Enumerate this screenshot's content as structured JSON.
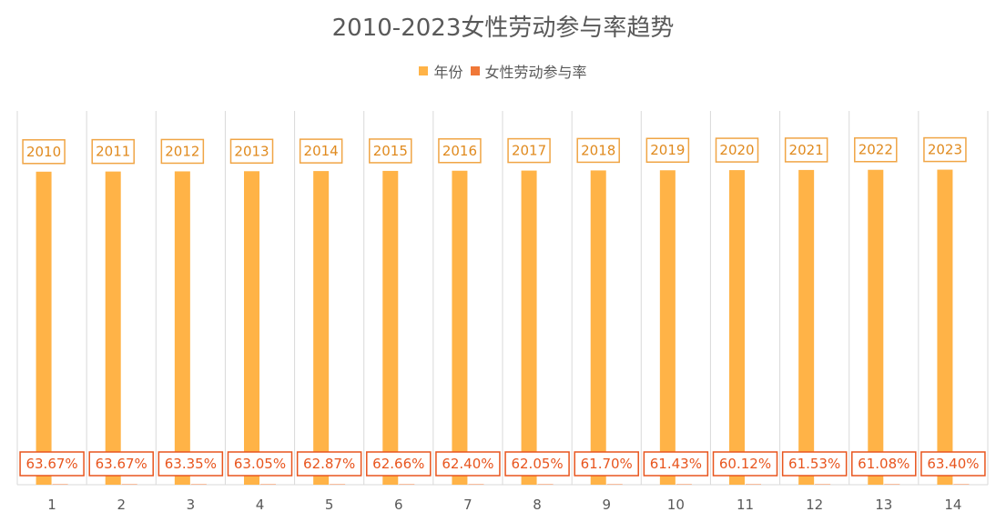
{
  "chart_data": {
    "type": "bar",
    "title": "2010-2023女性劳动参与率趋势",
    "categories": [
      "1",
      "2",
      "3",
      "4",
      "5",
      "6",
      "7",
      "8",
      "9",
      "10",
      "11",
      "12",
      "13",
      "14"
    ],
    "series": [
      {
        "name": "年份",
        "color": "#FFB347",
        "values": [
          2010,
          2011,
          2012,
          2013,
          2014,
          2015,
          2016,
          2017,
          2018,
          2019,
          2020,
          2021,
          2022,
          2023
        ],
        "labels": [
          "2010",
          "2011",
          "2012",
          "2013",
          "2014",
          "2015",
          "2016",
          "2017",
          "2018",
          "2019",
          "2020",
          "2021",
          "2022",
          "2023"
        ]
      },
      {
        "name": "女性劳动参与率",
        "color": "#F07838",
        "values": [
          0.6367,
          0.6367,
          0.6335,
          0.6305,
          0.6287,
          0.6266,
          0.624,
          0.6205,
          0.617,
          0.6143,
          0.6012,
          0.6153,
          0.6108,
          0.634
        ],
        "labels": [
          "63.67%",
          "63.67%",
          "63.35%",
          "63.05%",
          "62.87%",
          "62.66%",
          "62.40%",
          "62.05%",
          "61.70%",
          "61.43%",
          "60.12%",
          "61.53%",
          "61.08%",
          "63.40%"
        ]
      }
    ],
    "ylim": [
      0,
      2400
    ],
    "grid": "vertical",
    "legend_position": "top"
  }
}
